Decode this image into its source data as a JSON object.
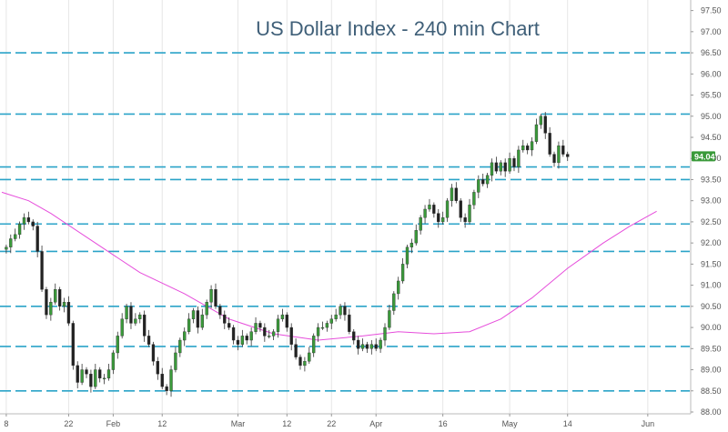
{
  "chart_data": {
    "type": "line",
    "title": "US Dollar Index - 240 min Chart",
    "xlabel": "",
    "ylabel": "",
    "ylim": [
      88.0,
      97.75
    ],
    "y_ticks": [
      "97.50",
      "97.00",
      "96.50",
      "96.00",
      "95.50",
      "95.00",
      "94.50",
      "94.00",
      "93.50",
      "93.00",
      "92.50",
      "92.00",
      "91.50",
      "91.00",
      "90.50",
      "90.00",
      "89.50",
      "89.00",
      "88.50",
      "88.00"
    ],
    "x_ticks": [
      {
        "label": "8",
        "day": 0
      },
      {
        "label": "22",
        "day": 14
      },
      {
        "label": "Feb",
        "day": 24
      },
      {
        "label": "12",
        "day": 35
      },
      {
        "label": "Mar",
        "day": 52
      },
      {
        "label": "12",
        "day": 63
      },
      {
        "label": "22",
        "day": 73
      },
      {
        "label": "Apr",
        "day": 83
      },
      {
        "label": "16",
        "day": 98
      },
      {
        "label": "May",
        "day": 113
      },
      {
        "label": "14",
        "day": 126
      },
      {
        "label": "Jun",
        "day": 144
      }
    ],
    "x_range": [
      -1,
      152
    ],
    "horizontal_levels": [
      96.5,
      95.05,
      93.8,
      93.5,
      92.45,
      91.8,
      90.5,
      89.55,
      88.5
    ],
    "last_price": "94.04",
    "colors": {
      "level_line": "#2aa3c8",
      "moving_average": "#e64ddb",
      "candle_up": "#3a9a3a",
      "candle_down": "#222222",
      "price_tag": "#3a9a3a",
      "title": "#3f5f78"
    },
    "series": [
      {
        "type": "candlestick",
        "points": [
          [
            0,
            91.9
          ],
          [
            1,
            92.1
          ],
          [
            2,
            92.2
          ],
          [
            3,
            92.45
          ],
          [
            4,
            92.6
          ],
          [
            5,
            92.5
          ],
          [
            6,
            92.4
          ],
          [
            7,
            91.8
          ],
          [
            8,
            90.9
          ],
          [
            9,
            90.3
          ],
          [
            10,
            90.6
          ],
          [
            11,
            90.9
          ],
          [
            12,
            90.5
          ],
          [
            13,
            90.6
          ],
          [
            14,
            90.1
          ],
          [
            15,
            89.1
          ],
          [
            16,
            88.7
          ],
          [
            17,
            89.0
          ],
          [
            18,
            88.9
          ],
          [
            19,
            88.6
          ],
          [
            20,
            89.0
          ],
          [
            21,
            88.8
          ],
          [
            22,
            88.8
          ],
          [
            23,
            89.0
          ],
          [
            24,
            89.4
          ],
          [
            25,
            89.8
          ],
          [
            26,
            90.2
          ],
          [
            27,
            90.5
          ],
          [
            28,
            90.1
          ],
          [
            29,
            90.2
          ],
          [
            30,
            90.3
          ],
          [
            31,
            89.8
          ],
          [
            32,
            89.6
          ],
          [
            33,
            89.2
          ],
          [
            34,
            88.9
          ],
          [
            35,
            88.6
          ],
          [
            36,
            88.5
          ],
          [
            37,
            89.0
          ],
          [
            38,
            89.4
          ],
          [
            39,
            89.7
          ],
          [
            40,
            89.9
          ],
          [
            41,
            90.2
          ],
          [
            42,
            90.4
          ],
          [
            43,
            90.0
          ],
          [
            44,
            90.3
          ],
          [
            45,
            90.6
          ],
          [
            46,
            90.9
          ],
          [
            47,
            90.5
          ],
          [
            48,
            90.3
          ],
          [
            49,
            90.1
          ],
          [
            50,
            90.0
          ],
          [
            51,
            89.7
          ],
          [
            52,
            89.6
          ],
          [
            53,
            89.8
          ],
          [
            54,
            89.7
          ],
          [
            55,
            89.9
          ],
          [
            56,
            90.1
          ],
          [
            57,
            90.0
          ],
          [
            58,
            89.8
          ],
          [
            59,
            89.8
          ],
          [
            60,
            89.9
          ],
          [
            61,
            90.2
          ],
          [
            62,
            90.3
          ],
          [
            63,
            90.0
          ],
          [
            64,
            89.6
          ],
          [
            65,
            89.3
          ],
          [
            66,
            89.1
          ],
          [
            67,
            89.2
          ],
          [
            68,
            89.4
          ],
          [
            69,
            89.8
          ],
          [
            70,
            90.0
          ],
          [
            71,
            90.0
          ],
          [
            72,
            90.1
          ],
          [
            73,
            90.2
          ],
          [
            74,
            90.3
          ],
          [
            75,
            90.5
          ],
          [
            76,
            90.3
          ],
          [
            77,
            89.9
          ],
          [
            78,
            89.7
          ],
          [
            79,
            89.5
          ],
          [
            80,
            89.6
          ],
          [
            81,
            89.5
          ],
          [
            82,
            89.6
          ],
          [
            83,
            89.5
          ],
          [
            84,
            89.7
          ],
          [
            85,
            90.0
          ],
          [
            86,
            90.4
          ],
          [
            87,
            90.8
          ],
          [
            88,
            91.1
          ],
          [
            89,
            91.5
          ],
          [
            90,
            91.9
          ],
          [
            91,
            92.0
          ],
          [
            92,
            92.3
          ],
          [
            93,
            92.6
          ],
          [
            94,
            92.8
          ],
          [
            95,
            92.9
          ],
          [
            96,
            92.7
          ],
          [
            97,
            92.5
          ],
          [
            98,
            92.6
          ],
          [
            99,
            93.0
          ],
          [
            100,
            93.3
          ],
          [
            101,
            93.0
          ],
          [
            102,
            92.6
          ],
          [
            103,
            92.5
          ],
          [
            104,
            92.9
          ],
          [
            105,
            93.2
          ],
          [
            106,
            93.5
          ],
          [
            107,
            93.4
          ],
          [
            108,
            93.6
          ],
          [
            109,
            93.9
          ],
          [
            110,
            93.7
          ],
          [
            111,
            93.9
          ],
          [
            112,
            93.7
          ],
          [
            113,
            94.0
          ],
          [
            114,
            93.8
          ],
          [
            115,
            94.2
          ],
          [
            116,
            94.3
          ],
          [
            117,
            94.2
          ],
          [
            118,
            94.4
          ],
          [
            119,
            94.8
          ],
          [
            120,
            95.0
          ],
          [
            121,
            94.6
          ],
          [
            122,
            94.1
          ],
          [
            123,
            93.9
          ],
          [
            124,
            94.3
          ],
          [
            125,
            94.1
          ],
          [
            126,
            94.04
          ]
        ]
      },
      {
        "type": "moving-average",
        "points": [
          [
            -1,
            93.2
          ],
          [
            5,
            93.0
          ],
          [
            10,
            92.7
          ],
          [
            20,
            92.0
          ],
          [
            30,
            91.3
          ],
          [
            40,
            90.8
          ],
          [
            50,
            90.2
          ],
          [
            60,
            89.85
          ],
          [
            70,
            89.7
          ],
          [
            80,
            89.8
          ],
          [
            88,
            89.9
          ],
          [
            96,
            89.85
          ],
          [
            104,
            89.9
          ],
          [
            111,
            90.2
          ],
          [
            118,
            90.7
          ],
          [
            126,
            91.4
          ],
          [
            134,
            92.0
          ],
          [
            140,
            92.4
          ],
          [
            146,
            92.75
          ]
        ]
      }
    ]
  }
}
